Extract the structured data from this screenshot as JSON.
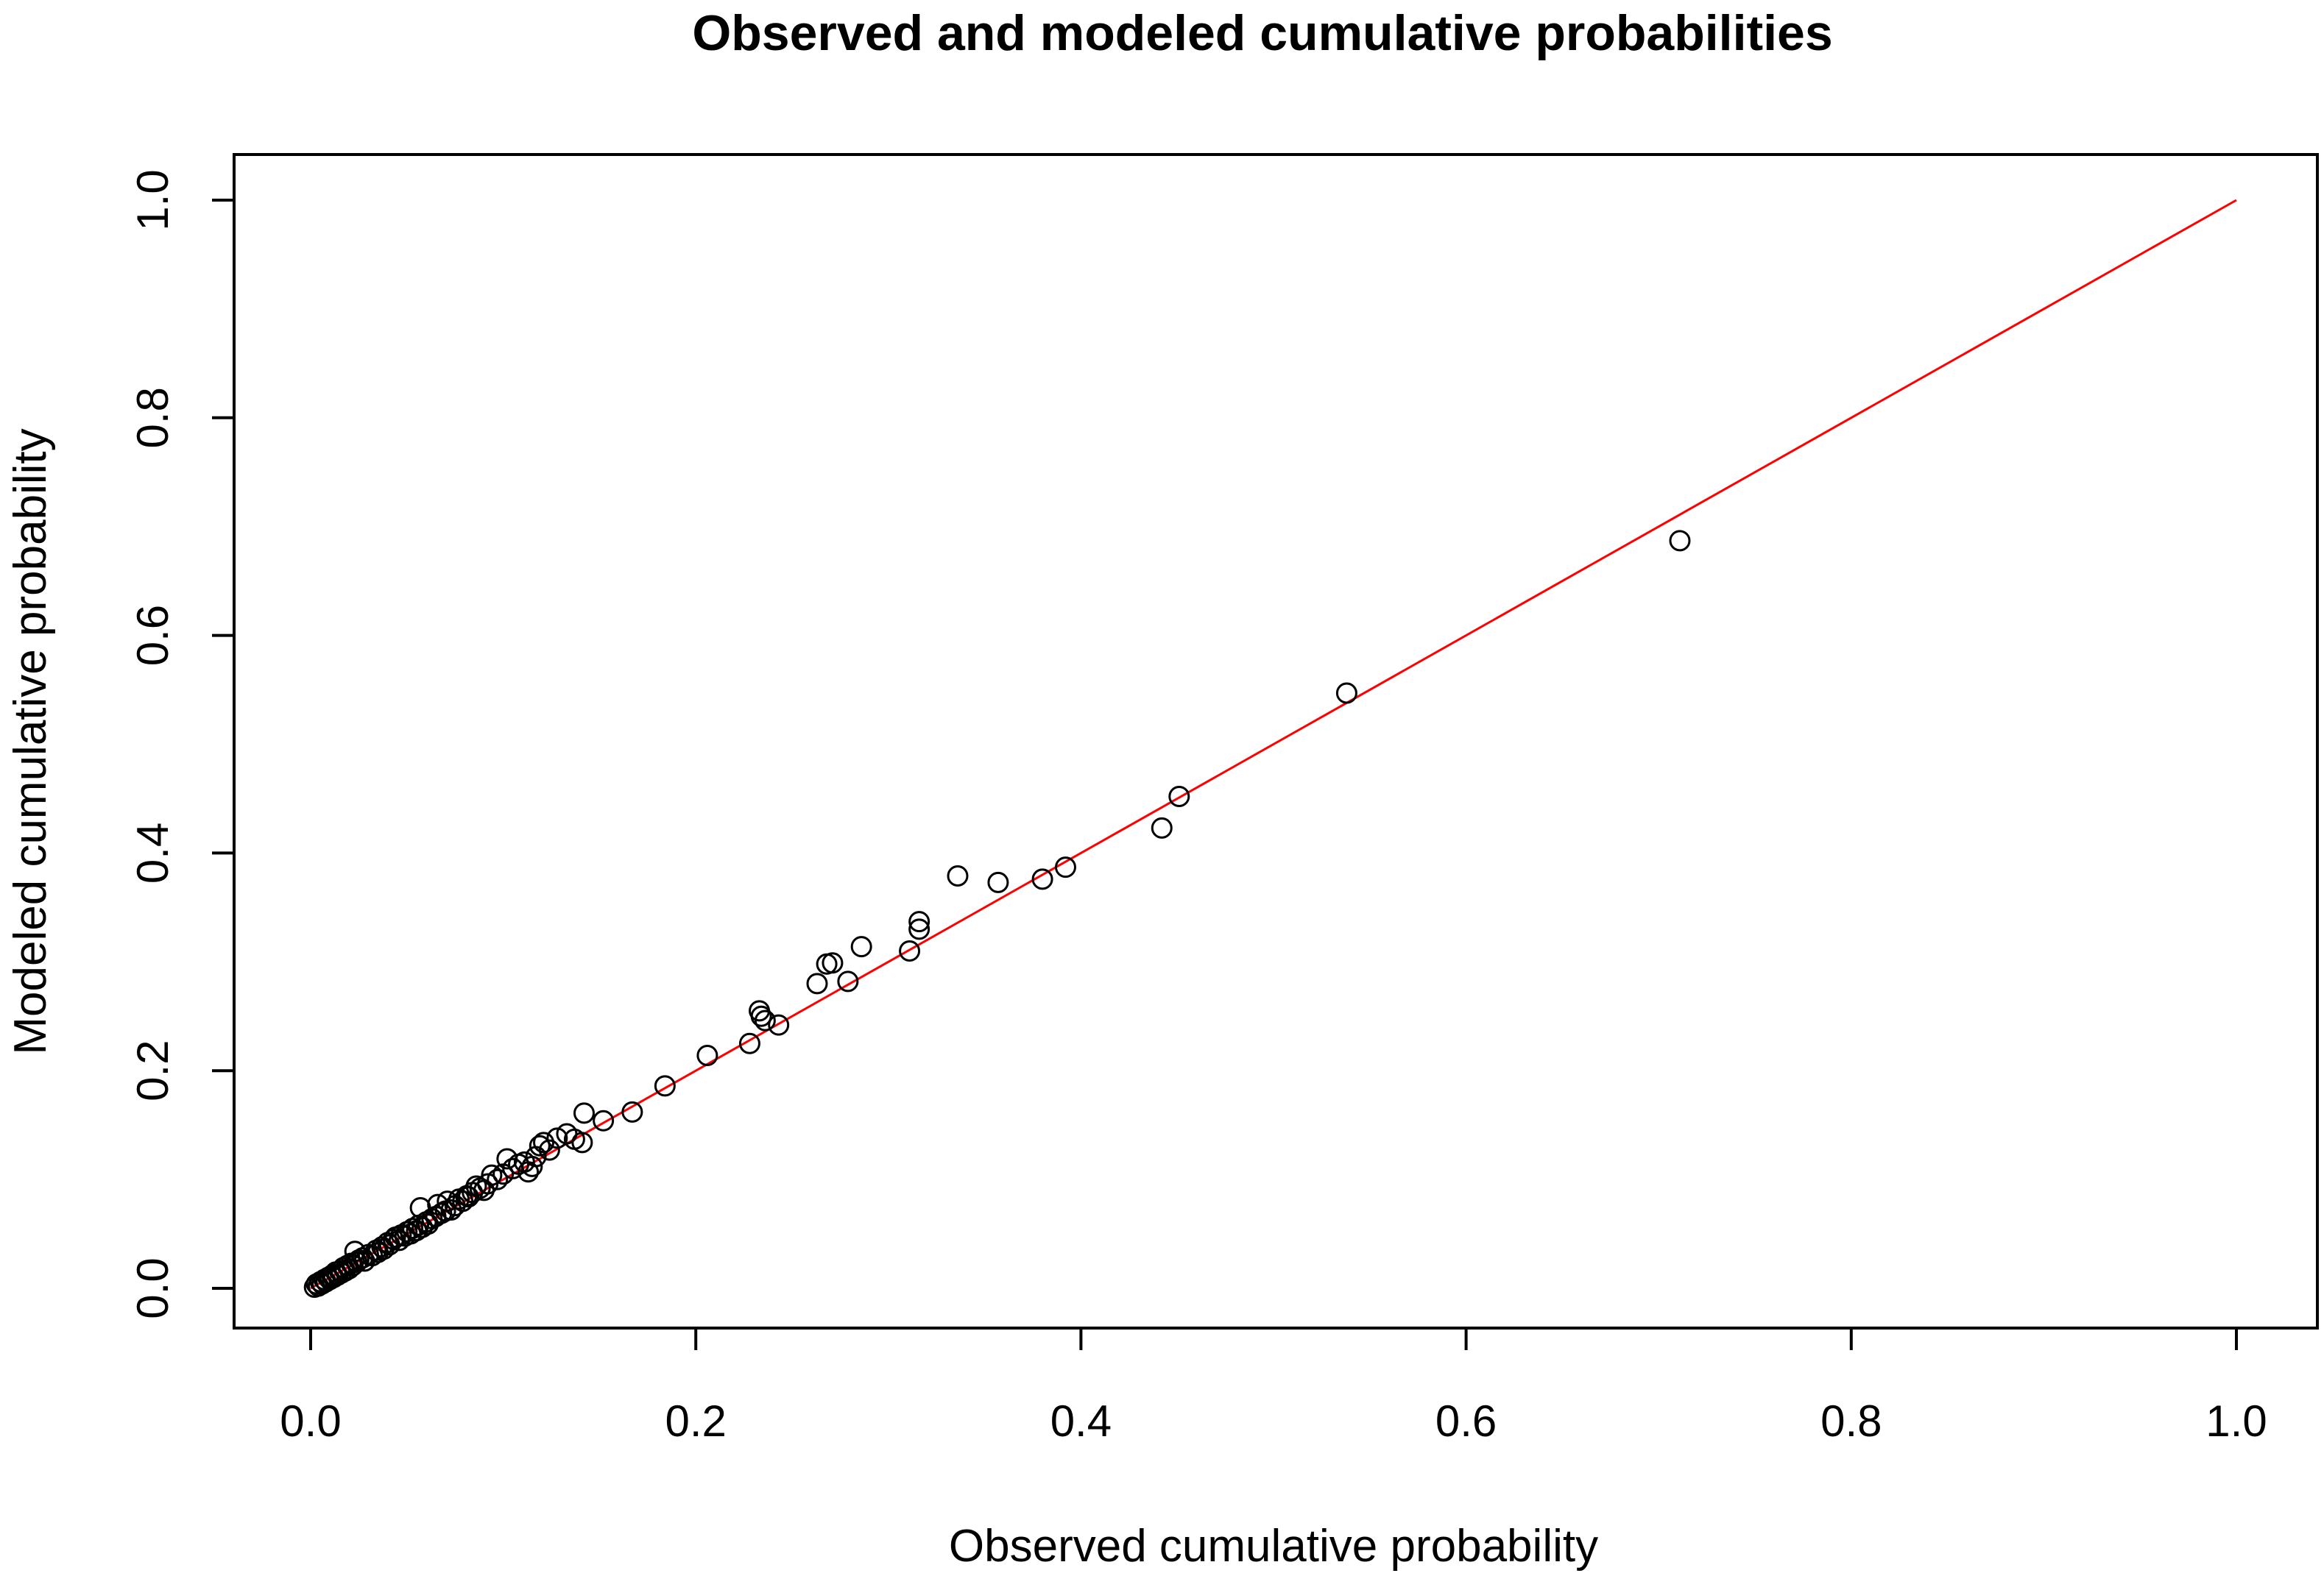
{
  "chart_data": {
    "type": "scatter",
    "title": "Observed and modeled cumulative probabilities",
    "xlabel": "Observed cumulative probability",
    "ylabel": "Modeled cumulative probability",
    "xlim": [
      0.0,
      1.0
    ],
    "ylim": [
      0.0,
      1.0
    ],
    "x_ticks": [
      "0.0",
      "0.2",
      "0.4",
      "0.6",
      "0.8",
      "1.0"
    ],
    "y_ticks": [
      "0.0",
      "0.2",
      "0.4",
      "0.6",
      "0.8",
      "1.0"
    ],
    "grid": false,
    "legend": "none",
    "reference_line": {
      "from": [
        0.0,
        0.0
      ],
      "to": [
        1.0,
        1.0
      ],
      "color": "#ff0000"
    },
    "point_color": "#000000",
    "points": [
      [
        0.002,
        0.001
      ],
      [
        0.003,
        0.004
      ],
      [
        0.004,
        0.002
      ],
      [
        0.005,
        0.006
      ],
      [
        0.006,
        0.004
      ],
      [
        0.007,
        0.008
      ],
      [
        0.008,
        0.006
      ],
      [
        0.009,
        0.01
      ],
      [
        0.01,
        0.008
      ],
      [
        0.011,
        0.012
      ],
      [
        0.012,
        0.01
      ],
      [
        0.013,
        0.015
      ],
      [
        0.014,
        0.012
      ],
      [
        0.015,
        0.016
      ],
      [
        0.016,
        0.014
      ],
      [
        0.017,
        0.019
      ],
      [
        0.018,
        0.016
      ],
      [
        0.019,
        0.021
      ],
      [
        0.02,
        0.018
      ],
      [
        0.021,
        0.023
      ],
      [
        0.022,
        0.021
      ],
      [
        0.023,
        0.034
      ],
      [
        0.024,
        0.024
      ],
      [
        0.025,
        0.026
      ],
      [
        0.027,
        0.028
      ],
      [
        0.028,
        0.025
      ],
      [
        0.03,
        0.031
      ],
      [
        0.032,
        0.03
      ],
      [
        0.034,
        0.035
      ],
      [
        0.035,
        0.033
      ],
      [
        0.037,
        0.038
      ],
      [
        0.038,
        0.036
      ],
      [
        0.04,
        0.042
      ],
      [
        0.041,
        0.04
      ],
      [
        0.043,
        0.045
      ],
      [
        0.044,
        0.047
      ],
      [
        0.046,
        0.044
      ],
      [
        0.047,
        0.049
      ],
      [
        0.049,
        0.048
      ],
      [
        0.05,
        0.052
      ],
      [
        0.052,
        0.05
      ],
      [
        0.053,
        0.055
      ],
      [
        0.055,
        0.053
      ],
      [
        0.056,
        0.058
      ],
      [
        0.057,
        0.074
      ],
      [
        0.058,
        0.056
      ],
      [
        0.06,
        0.061
      ],
      [
        0.061,
        0.059
      ],
      [
        0.063,
        0.064
      ],
      [
        0.065,
        0.066
      ],
      [
        0.066,
        0.077
      ],
      [
        0.068,
        0.069
      ],
      [
        0.07,
        0.071
      ],
      [
        0.071,
        0.08
      ],
      [
        0.073,
        0.072
      ],
      [
        0.075,
        0.076
      ],
      [
        0.077,
        0.082
      ],
      [
        0.079,
        0.08
      ],
      [
        0.081,
        0.085
      ],
      [
        0.082,
        0.084
      ],
      [
        0.084,
        0.088
      ],
      [
        0.086,
        0.094
      ],
      [
        0.088,
        0.092
      ],
      [
        0.09,
        0.09
      ],
      [
        0.092,
        0.096
      ],
      [
        0.094,
        0.104
      ],
      [
        0.097,
        0.1
      ],
      [
        0.1,
        0.105
      ],
      [
        0.102,
        0.119
      ],
      [
        0.105,
        0.11
      ],
      [
        0.108,
        0.114
      ],
      [
        0.111,
        0.116
      ],
      [
        0.113,
        0.107
      ],
      [
        0.115,
        0.112
      ],
      [
        0.117,
        0.121
      ],
      [
        0.119,
        0.131
      ],
      [
        0.121,
        0.134
      ],
      [
        0.124,
        0.127
      ],
      [
        0.128,
        0.138
      ],
      [
        0.133,
        0.142
      ],
      [
        0.137,
        0.137
      ],
      [
        0.141,
        0.134
      ],
      [
        0.142,
        0.161
      ],
      [
        0.152,
        0.154
      ],
      [
        0.167,
        0.162
      ],
      [
        0.184,
        0.186
      ],
      [
        0.206,
        0.214
      ],
      [
        0.228,
        0.225
      ],
      [
        0.233,
        0.255
      ],
      [
        0.234,
        0.25
      ],
      [
        0.236,
        0.246
      ],
      [
        0.243,
        0.242
      ],
      [
        0.263,
        0.28
      ],
      [
        0.268,
        0.298
      ],
      [
        0.271,
        0.299
      ],
      [
        0.279,
        0.282
      ],
      [
        0.286,
        0.314
      ],
      [
        0.311,
        0.31
      ],
      [
        0.316,
        0.337
      ],
      [
        0.316,
        0.33
      ],
      [
        0.336,
        0.379
      ],
      [
        0.357,
        0.373
      ],
      [
        0.38,
        0.376
      ],
      [
        0.392,
        0.387
      ],
      [
        0.442,
        0.423
      ],
      [
        0.451,
        0.452
      ],
      [
        0.538,
        0.547
      ],
      [
        0.711,
        0.687
      ]
    ]
  }
}
